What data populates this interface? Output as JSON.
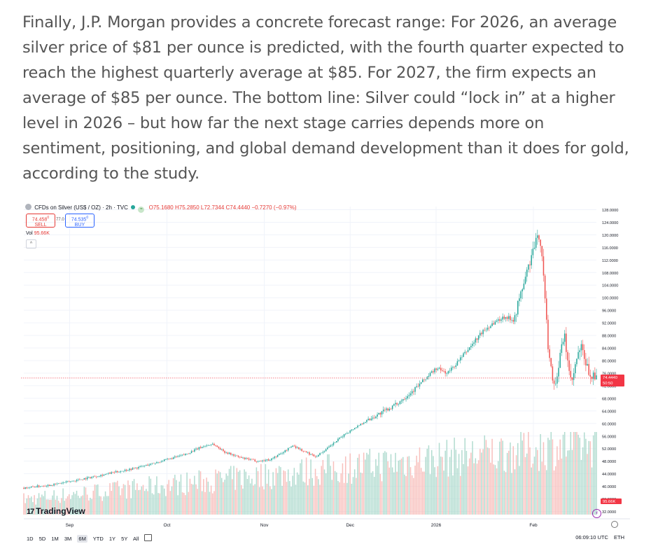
{
  "article": {
    "paragraph": "Finally, J.P. Morgan provides a concrete forecast range: For 2026, an average silver price of $81 per ounce is predicted, with the fourth quarter expected to reach the highest quarterly average at $85. For 2027, the firm expects an average of $85 per ounce. The bottom line: Silver could “lock in” at a higher level in 2026 – but how far the next stage carries depends more on sentiment, positioning, and global demand development than it does for gold, according to the study."
  },
  "chart_header": {
    "symbol": "CFDs on Silver (US$ / OZ) · 2h · TVC",
    "fx_icon": "≈",
    "open": "O75.1680",
    "high": "H75.2850",
    "low": "L72.7344",
    "close": "C74.4440",
    "change": "−0.7270 (−0.97%)",
    "sell_price": "74.458",
    "sell_sup": "0",
    "sell_label": "SELL",
    "spread": "77.0",
    "buy_price": "74.535",
    "buy_sup": "0",
    "buy_label": "BUY",
    "vol_label": "Vol",
    "vol_value": "95.66K",
    "collapse_glyph": "^"
  },
  "branding": {
    "logo_mark": "17",
    "logo_text": "TradingView"
  },
  "bottom_bar": {
    "ranges": [
      "1D",
      "5D",
      "1M",
      "3M",
      "6M",
      "YTD",
      "1Y",
      "5Y",
      "All"
    ],
    "active_range": "6M",
    "time": "06:09:10 UTC",
    "session": "ETH"
  },
  "colors": {
    "up": "#26a69a",
    "down": "#ef5350",
    "up_vol": "#a5d6c8",
    "down_vol": "#f7b5b2",
    "last_price": "#f23645"
  },
  "chart_data": {
    "type": "candlestick",
    "title": "CFDs on Silver (US$ / OZ) · 2h · TVC",
    "ylim": [
      31,
      129
    ],
    "y_ticks": [
      "128.0000",
      "124.0000",
      "120.0000",
      "116.0000",
      "112.0000",
      "108.0000",
      "104.0000",
      "100.0000",
      "96.0000",
      "92.0000",
      "88.0000",
      "84.0000",
      "80.0000",
      "76.0000",
      "72.0000",
      "68.0000",
      "64.0000",
      "60.0000",
      "56.0000",
      "52.0000",
      "48.0000",
      "44.0000",
      "40.0000",
      "36.0000",
      "32.0000"
    ],
    "y_tick_values": [
      128,
      124,
      120,
      116,
      112,
      108,
      104,
      100,
      96,
      92,
      88,
      84,
      80,
      76,
      72,
      68,
      64,
      60,
      56,
      52,
      48,
      44,
      40,
      36,
      32
    ],
    "x_ticks": [
      "Sep",
      "Oct",
      "Nov",
      "Dec",
      "2026",
      "Feb"
    ],
    "x_tick_positions": [
      0.08,
      0.25,
      0.42,
      0.57,
      0.72,
      0.89
    ],
    "last_price_label": "74.4440",
    "countdown_label": "50:50",
    "vol_badge": "95.66K",
    "price_path": [
      [
        0.0,
        39.5
      ],
      [
        0.05,
        40.5
      ],
      [
        0.08,
        41.5
      ],
      [
        0.12,
        43.0
      ],
      [
        0.16,
        44.5
      ],
      [
        0.2,
        46.0
      ],
      [
        0.24,
        48.0
      ],
      [
        0.28,
        50.0
      ],
      [
        0.31,
        52.5
      ],
      [
        0.33,
        53.5
      ],
      [
        0.35,
        51.0
      ],
      [
        0.38,
        49.0
      ],
      [
        0.41,
        48.0
      ],
      [
        0.43,
        48.5
      ],
      [
        0.45,
        50.5
      ],
      [
        0.47,
        53.0
      ],
      [
        0.49,
        51.0
      ],
      [
        0.51,
        49.5
      ],
      [
        0.53,
        52.0
      ],
      [
        0.56,
        56.5
      ],
      [
        0.59,
        60.0
      ],
      [
        0.62,
        63.0
      ],
      [
        0.65,
        66.0
      ],
      [
        0.68,
        70.5
      ],
      [
        0.7,
        74.0
      ],
      [
        0.72,
        77.5
      ],
      [
        0.74,
        76.0
      ],
      [
        0.76,
        80.0
      ],
      [
        0.78,
        84.5
      ],
      [
        0.8,
        89.0
      ],
      [
        0.82,
        92.0
      ],
      [
        0.84,
        94.0
      ],
      [
        0.855,
        93.0
      ],
      [
        0.865,
        99.0
      ],
      [
        0.875,
        106.0
      ],
      [
        0.885,
        112.0
      ],
      [
        0.893,
        117.0
      ],
      [
        0.9,
        120.0
      ],
      [
        0.905,
        114.0
      ],
      [
        0.91,
        100.0
      ],
      [
        0.915,
        86.0
      ],
      [
        0.92,
        78.0
      ],
      [
        0.927,
        72.0
      ],
      [
        0.932,
        76.0
      ],
      [
        0.938,
        83.0
      ],
      [
        0.944,
        88.0
      ],
      [
        0.95,
        80.0
      ],
      [
        0.956,
        72.0
      ],
      [
        0.962,
        77.0
      ],
      [
        0.968,
        82.0
      ],
      [
        0.974,
        84.0
      ],
      [
        0.98,
        80.0
      ],
      [
        0.986,
        76.5
      ],
      [
        0.993,
        75.0
      ],
      [
        1.0,
        74.444
      ]
    ]
  }
}
